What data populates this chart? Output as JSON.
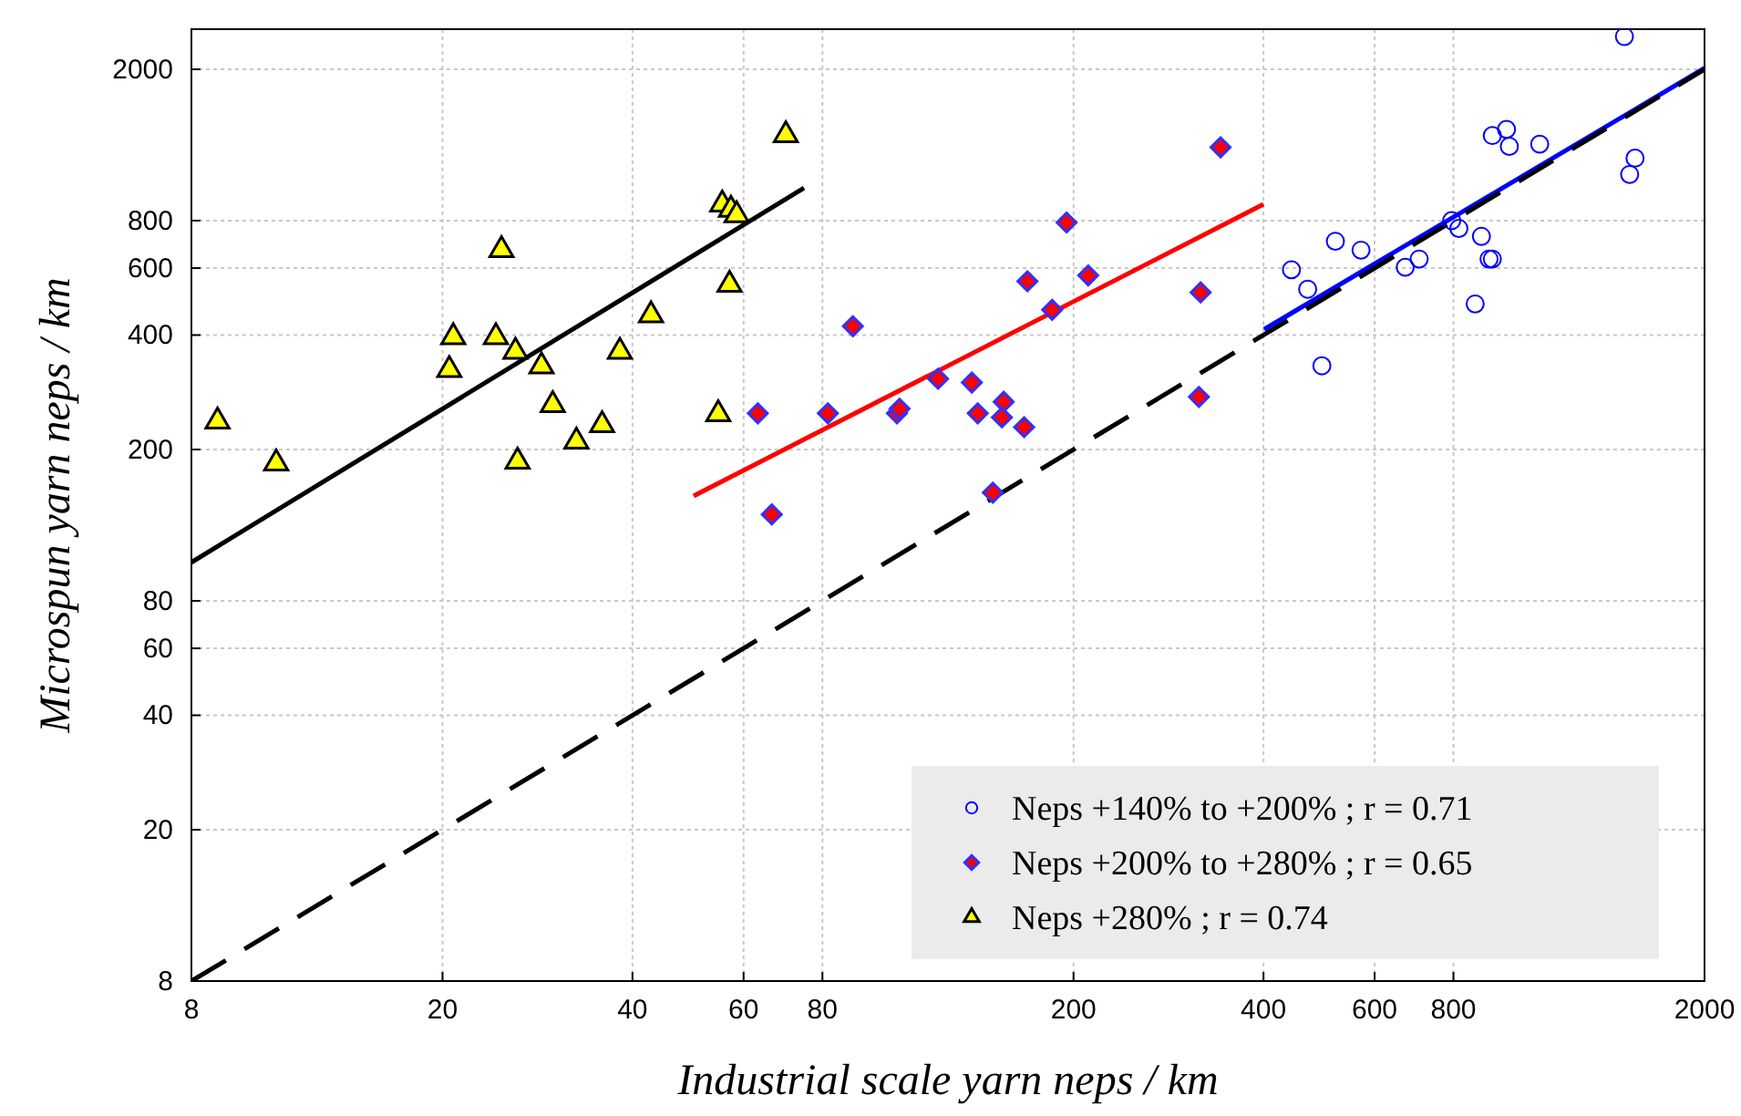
{
  "chart_data": {
    "type": "scatter",
    "xlabel": "Industrial scale yarn neps / km",
    "ylabel": "Microspun yarn neps / km",
    "log": "xy",
    "grid": true,
    "legend": "bottom right",
    "xlim": [
      8,
      2000
    ],
    "ylim": [
      8,
      2550
    ],
    "xticks": [
      8,
      20,
      40,
      60,
      80,
      200,
      400,
      600,
      800,
      2000
    ],
    "yticks": [
      8,
      20,
      40,
      60,
      80,
      200,
      400,
      600,
      800,
      2000
    ],
    "series": [
      {
        "name": "Neps +140% to +200% ; r = 0.71",
        "marker": "circle",
        "color": "#0000ff",
        "x": [
          1493,
          922,
          971,
          981,
          1096,
          1552,
          1522,
          795,
          816,
          886,
          911,
          922,
          866,
          520,
          571,
          671,
          706,
          443,
          470,
          495
        ],
        "values": [
          2439,
          1339,
          1390,
          1254,
          1271,
          1168,
          1058,
          800,
          763,
          727,
          634,
          634,
          483,
          706,
          669,
          603,
          634,
          594,
          528,
          332
        ]
      },
      {
        "name": "Neps +200% to +280% ; r = 0.65",
        "marker": "diamond",
        "color": "#ff0000",
        "x": [
          63.2,
          66.5,
          81.6,
          89.4,
          105,
          106,
          122,
          138,
          141,
          155,
          154,
          149,
          167,
          169,
          185,
          195,
          211,
          316,
          318,
          342
        ],
        "values": [
          249,
          135,
          249,
          422,
          249,
          256,
          307,
          300,
          249,
          267,
          243,
          154,
          229,
          554,
          466,
          791,
          574,
          275,
          518,
          1247
        ]
      },
      {
        "name": "Neps +280% ; r = 0.74",
        "marker": "triangle",
        "color": "#ffff00",
        "x": [
          8.8,
          10.9,
          20.5,
          20.8,
          24.3,
          24.8,
          26.1,
          26.3,
          28.7,
          29.9,
          32.6,
          35.8,
          38.2,
          42.8,
          54.7,
          55.5,
          57.3,
          58.5,
          57.0,
          70.0
        ],
        "values": [
          237,
          184,
          324,
          395,
          395,
          670,
          362,
          186,
          331,
          262,
          210,
          232,
          362,
          451,
          248,
          883,
          855,
          827,
          543,
          1343
        ]
      },
      {
        "type": "line",
        "marker": "none",
        "line_style": "solid",
        "color": "#000000",
        "x": [
          8,
          74.8
        ],
        "values": [
          101,
          975
        ]
      },
      {
        "type": "line",
        "marker": "none",
        "line_style": "solid",
        "color": "#ff0000",
        "x": [
          50,
          400
        ],
        "values": [
          151,
          883
        ]
      },
      {
        "type": "line",
        "marker": "none",
        "line_style": "solid",
        "color": "#0000ff",
        "x": [
          401,
          2000
        ],
        "values": [
          414,
          2014
        ]
      },
      {
        "type": "line",
        "marker": "none",
        "line_style": "dashed",
        "color": "#000000",
        "x": [
          8,
          2000
        ],
        "values": [
          8,
          2000
        ]
      }
    ]
  }
}
